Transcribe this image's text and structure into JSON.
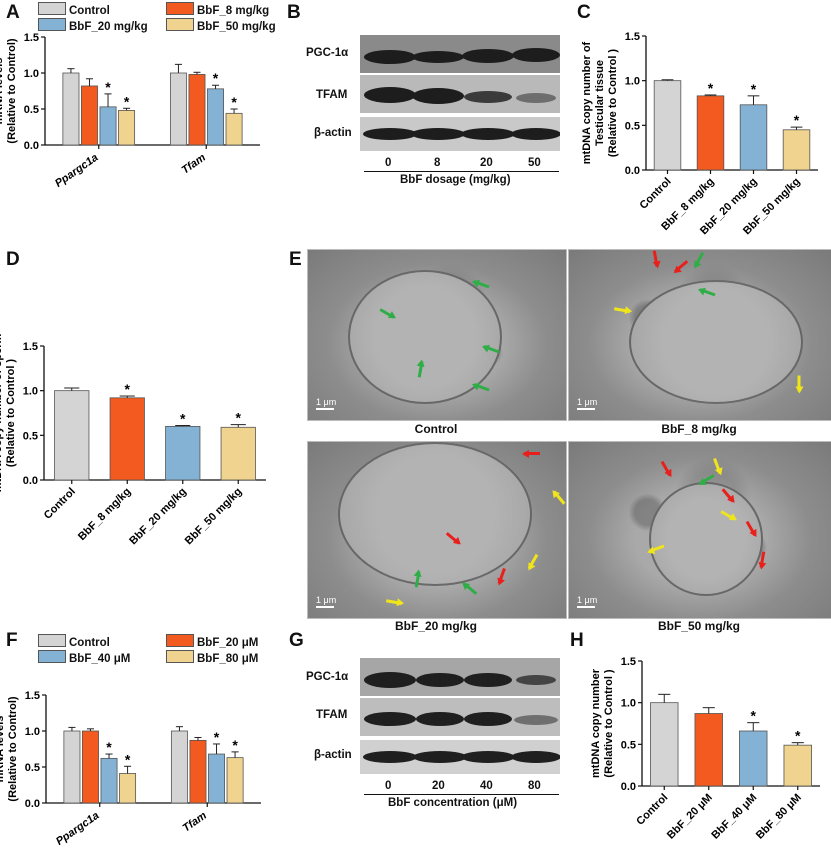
{
  "panels": {
    "A": "A",
    "B": "B",
    "C": "C",
    "D": "D",
    "E": "E",
    "F": "F",
    "G": "G",
    "H": "H"
  },
  "colors": {
    "control": "#d4d4d4",
    "g1": "#f25a1f",
    "g2": "#84b2d4",
    "g3": "#efd38e",
    "green_arrow": "#2fae47",
    "red_arrow": "#e8201c",
    "yellow_arrow": "#f0e51b"
  },
  "legend_A": [
    "Control",
    "BbF_8 mg/kg",
    "BbF_20 mg/kg",
    "BbF_50 mg/kg"
  ],
  "legend_F": [
    "Control",
    "BbF_20 μM",
    "BbF_40 μM",
    "BbF_80 μM"
  ],
  "blot_B": {
    "rows": [
      "PGC-1α",
      "TFAM",
      "β-actin"
    ],
    "lanes": [
      "0",
      "8",
      "20",
      "50"
    ],
    "xlabel": "BbF dosage (mg/kg)"
  },
  "blot_G": {
    "rows": [
      "PGC-1α",
      "TFAM",
      "β-actin"
    ],
    "lanes": [
      "0",
      "20",
      "40",
      "80"
    ],
    "xlabel": "BbF concentration (μM)"
  },
  "tem": {
    "captions": [
      "Control",
      "BbF_8 mg/kg",
      "BbF_20 mg/kg",
      "BbF_50 mg/kg"
    ],
    "scale": "1 μm"
  },
  "chart_data": [
    {
      "id": "A",
      "type": "bar",
      "ylabel": "mRNA levels\n(Relative to Control)",
      "ylim": [
        0,
        1.5
      ],
      "yticks": [
        "0.0",
        "0.5",
        "1.0",
        "1.5"
      ],
      "categories": [
        "Ppargc1a",
        "Tfam"
      ],
      "series": [
        {
          "name": "Control",
          "values": [
            1.0,
            1.0
          ],
          "err": [
            0.06,
            0.12
          ],
          "sig": [
            "",
            ""
          ]
        },
        {
          "name": "BbF_8 mg/kg",
          "values": [
            0.82,
            0.98
          ],
          "err": [
            0.1,
            0.03
          ],
          "sig": [
            "",
            ""
          ]
        },
        {
          "name": "BbF_20 mg/kg",
          "values": [
            0.53,
            0.78
          ],
          "err": [
            0.18,
            0.05
          ],
          "sig": [
            "*",
            "*"
          ]
        },
        {
          "name": "BbF_50 mg/kg",
          "values": [
            0.48,
            0.44
          ],
          "err": [
            0.03,
            0.06
          ],
          "sig": [
            "*",
            "*"
          ]
        }
      ]
    },
    {
      "id": "C",
      "type": "bar",
      "ylabel": "mtDNA copy number of\nTesticular tissue\n(Relative to Control )",
      "ylim": [
        0,
        1.5
      ],
      "yticks": [
        "0.0",
        "0.5",
        "1.0",
        "1.5"
      ],
      "categories": [
        "Control",
        "BbF_8 mg/kg",
        "BbF_20 mg/kg",
        "BbF_50 mg/kg"
      ],
      "values": [
        1.0,
        0.83,
        0.73,
        0.45
      ],
      "err": [
        0.01,
        0.01,
        0.1,
        0.03
      ],
      "sig": [
        "",
        "*",
        "*",
        "*"
      ]
    },
    {
      "id": "D",
      "type": "bar",
      "ylabel": "mtDNA copy number of sperm\n(Relative to Control )",
      "ylim": [
        0,
        1.5
      ],
      "yticks": [
        "0.0",
        "0.5",
        "1.0",
        "1.5"
      ],
      "categories": [
        "Control",
        "BbF_8 mg/kg",
        "BbF_20 mg/kg",
        "BbF_50 mg/kg"
      ],
      "values": [
        1.0,
        0.92,
        0.6,
        0.59
      ],
      "err": [
        0.03,
        0.02,
        0.01,
        0.03
      ],
      "sig": [
        "",
        "*",
        "*",
        "*"
      ]
    },
    {
      "id": "F",
      "type": "bar",
      "ylabel": "mRNA levels\n(Relative to Control)",
      "ylim": [
        0,
        1.5
      ],
      "yticks": [
        "0.0",
        "0.5",
        "1.0",
        "1.5"
      ],
      "categories": [
        "Ppargc1a",
        "Tfam"
      ],
      "series": [
        {
          "name": "Control",
          "values": [
            1.0,
            1.0
          ],
          "err": [
            0.05,
            0.06
          ],
          "sig": [
            "",
            ""
          ]
        },
        {
          "name": "BbF_20 μM",
          "values": [
            1.0,
            0.87
          ],
          "err": [
            0.03,
            0.04
          ],
          "sig": [
            "",
            ""
          ]
        },
        {
          "name": "BbF_40 μM",
          "values": [
            0.62,
            0.68
          ],
          "err": [
            0.06,
            0.14
          ],
          "sig": [
            "*",
            "*"
          ]
        },
        {
          "name": "BbF_80 μM",
          "values": [
            0.41,
            0.63
          ],
          "err": [
            0.1,
            0.08
          ],
          "sig": [
            "*",
            "*"
          ]
        }
      ]
    },
    {
      "id": "H",
      "type": "bar",
      "ylabel": "mtDNA copy number\n(Relative to Control )",
      "ylim": [
        0,
        1.5
      ],
      "yticks": [
        "0.0",
        "0.5",
        "1.0",
        "1.5"
      ],
      "categories": [
        "Control",
        "BbF_20 μM",
        "BbF_40 μM",
        "BbF_80 μM"
      ],
      "values": [
        1.0,
        0.87,
        0.66,
        0.49
      ],
      "err": [
        0.1,
        0.07,
        0.1,
        0.03
      ],
      "sig": [
        "",
        "",
        "*",
        "*"
      ]
    }
  ]
}
